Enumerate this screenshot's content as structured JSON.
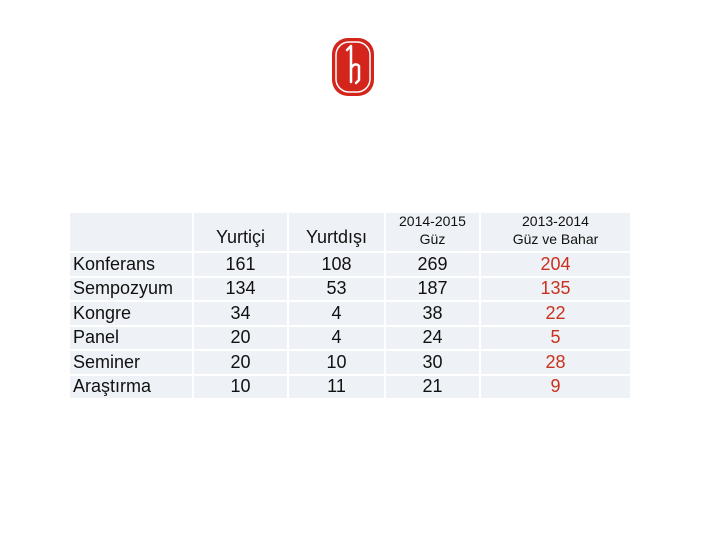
{
  "table": {
    "columns": [
      [
        "Yurtiçi"
      ],
      [
        "Yurtdışı"
      ],
      [
        "2014-2015",
        "Güz"
      ],
      [
        "2013-2014",
        "Güz ve Bahar"
      ]
    ],
    "rows": [
      {
        "label": "Konferans",
        "values": [
          161,
          108,
          269,
          204
        ]
      },
      {
        "label": "Sempozyum",
        "values": [
          134,
          53,
          187,
          135
        ]
      },
      {
        "label": "Kongre",
        "values": [
          34,
          4,
          38,
          22
        ]
      },
      {
        "label": "Panel",
        "values": [
          20,
          4,
          24,
          5
        ]
      },
      {
        "label": "Seminer",
        "values": [
          20,
          10,
          30,
          28
        ]
      },
      {
        "label": "Araştırma",
        "values": [
          10,
          11,
          21,
          9
        ]
      }
    ]
  }
}
